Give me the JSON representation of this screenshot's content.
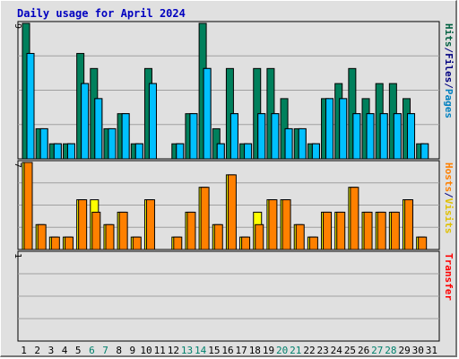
{
  "chart_data": {
    "type": "bar",
    "title": "Daily usage for April 2024",
    "categories": [
      "1",
      "2",
      "3",
      "4",
      "5",
      "6",
      "7",
      "8",
      "9",
      "10",
      "11",
      "12",
      "13",
      "14",
      "15",
      "16",
      "17",
      "18",
      "19",
      "20",
      "21",
      "22",
      "23",
      "24",
      "25",
      "26",
      "27",
      "28",
      "29",
      "30",
      "31"
    ],
    "weekend_days": [
      "6",
      "7",
      "13",
      "14",
      "20",
      "21",
      "27",
      "28"
    ],
    "panels": [
      {
        "id": "top",
        "ylim": [
          0,
          9
        ],
        "max_label": "9",
        "side_label": [
          {
            "text": "Hits",
            "color": "#006040"
          },
          {
            "text": "/",
            "color": "#000080"
          },
          {
            "text": "Files",
            "color": "#000080"
          },
          {
            "text": "/",
            "color": "#000080"
          },
          {
            "text": "Pages",
            "color": "#0080c0"
          }
        ],
        "series": [
          {
            "name": "Hits",
            "color": "#00805c",
            "values": [
              9,
              2,
              1,
              1,
              7,
              6,
              2,
              3,
              1,
              6,
              0,
              1,
              3,
              9,
              2,
              6,
              1,
              6,
              6,
              4,
              2,
              1,
              4,
              5,
              6,
              4,
              5,
              5,
              4,
              1,
              0
            ]
          },
          {
            "name": "Files",
            "color": "#0080ff",
            "values": [
              7,
              2,
              1,
              1,
              5,
              4,
              2,
              3,
              1,
              5,
              0,
              1,
              3,
              6,
              1,
              3,
              1,
              3,
              3,
              2,
              2,
              1,
              4,
              4,
              3,
              3,
              3,
              3,
              3,
              1,
              0
            ]
          },
          {
            "name": "Pages",
            "color": "#00c0ff",
            "values": [
              7,
              2,
              1,
              1,
              5,
              4,
              2,
              3,
              1,
              5,
              0,
              1,
              3,
              6,
              1,
              3,
              1,
              3,
              3,
              2,
              2,
              1,
              4,
              4,
              3,
              3,
              3,
              3,
              3,
              1,
              0
            ]
          }
        ]
      },
      {
        "id": "middle",
        "ylim": [
          0,
          7
        ],
        "max_label": "7",
        "side_label": [
          {
            "text": "Hosts",
            "color": "#ff8000"
          },
          {
            "text": "/",
            "color": "#000080"
          },
          {
            "text": "Visits",
            "color": "#e0c000"
          }
        ],
        "series": [
          {
            "name": "Visits",
            "color": "#ffff00",
            "values": [
              7,
              2,
              1,
              1,
              4,
              4,
              2,
              3,
              1,
              4,
              0,
              1,
              3,
              5,
              2,
              6,
              1,
              3,
              4,
              4,
              2,
              1,
              3,
              3,
              5,
              3,
              3,
              3,
              4,
              1,
              0
            ]
          },
          {
            "name": "Hosts",
            "color": "#ff8000",
            "values": [
              7,
              2,
              1,
              1,
              4,
              3,
              2,
              3,
              1,
              4,
              0,
              1,
              3,
              5,
              2,
              6,
              1,
              2,
              4,
              4,
              2,
              1,
              3,
              3,
              5,
              3,
              3,
              3,
              4,
              1,
              0
            ]
          }
        ]
      },
      {
        "id": "bottom",
        "ylim": [
          0,
          1
        ],
        "max_label": "1",
        "side_label": [
          {
            "text": "Transfer",
            "color": "#ff0000"
          }
        ],
        "series": [
          {
            "name": "Transfer",
            "color": "#ff0000",
            "values": [
              0,
              0,
              0,
              0,
              0,
              0,
              0,
              0,
              0,
              0,
              0,
              0,
              0,
              0,
              0,
              0,
              0,
              0,
              0,
              0,
              0,
              0,
              0,
              0,
              0,
              0,
              0,
              0,
              0,
              0,
              0
            ]
          }
        ]
      }
    ],
    "colors": {
      "title": "#0000c0",
      "weekday_label": "#000000",
      "weekend_label": "#00806c",
      "plot_bg": "#e0e0e0",
      "grid": "#a0a0a0"
    },
    "grid": true
  }
}
